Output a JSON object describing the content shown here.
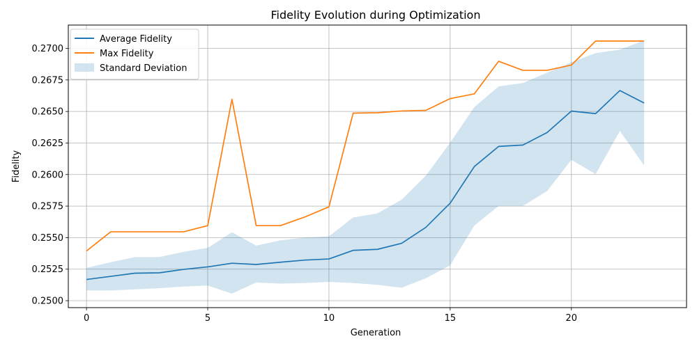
{
  "chart_data": {
    "type": "line",
    "title": "Fidelity Evolution during Optimization",
    "xlabel": "Generation",
    "ylabel": "Fidelity",
    "xlim": [
      -0.75,
      24.75
    ],
    "ylim": [
      0.24945,
      0.27185
    ],
    "grid": true,
    "legend_position": "top-left",
    "x_ticks": [
      0,
      5,
      10,
      15,
      20
    ],
    "x_tick_labels": [
      "0",
      "5",
      "10",
      "15",
      "20"
    ],
    "y_ticks": [
      0.25,
      0.2525,
      0.255,
      0.2575,
      0.26,
      0.2625,
      0.265,
      0.2675,
      0.27
    ],
    "y_tick_labels": [
      "0.2500",
      "0.2525",
      "0.2550",
      "0.2575",
      "0.2600",
      "0.2625",
      "0.2650",
      "0.2675",
      "0.2700"
    ],
    "x": [
      0,
      1,
      2,
      3,
      4,
      5,
      6,
      7,
      8,
      9,
      10,
      11,
      12,
      13,
      14,
      15,
      16,
      17,
      18,
      19,
      20,
      21,
      22,
      23
    ],
    "series": [
      {
        "name": "Average Fidelity",
        "color": "#1f77b4",
        "values": [
          0.25168,
          0.25193,
          0.25218,
          0.25221,
          0.25248,
          0.25268,
          0.25297,
          0.25287,
          0.25305,
          0.25322,
          0.25331,
          0.25399,
          0.25407,
          0.25455,
          0.25582,
          0.25773,
          0.26064,
          0.26223,
          0.26234,
          0.26333,
          0.26503,
          0.26483,
          0.26666,
          0.26567
        ]
      },
      {
        "name": "Max Fidelity",
        "color": "#ff7f0e",
        "values": [
          0.25394,
          0.25546,
          0.25546,
          0.25546,
          0.25546,
          0.25595,
          0.26597,
          0.25595,
          0.25595,
          0.25663,
          0.25744,
          0.26487,
          0.2649,
          0.26504,
          0.26509,
          0.26602,
          0.2664,
          0.26898,
          0.26826,
          0.26826,
          0.26868,
          0.27058,
          0.27058,
          0.27058
        ]
      }
    ],
    "band": {
      "name": "Standard Deviation",
      "color": "#1f77b4",
      "opacity": 0.2,
      "lower": [
        0.25081,
        0.25081,
        0.2509,
        0.25099,
        0.25112,
        0.2512,
        0.25056,
        0.25144,
        0.25135,
        0.2514,
        0.25149,
        0.2514,
        0.25126,
        0.25103,
        0.25178,
        0.2528,
        0.25596,
        0.25751,
        0.25751,
        0.25869,
        0.26117,
        0.26003,
        0.26345,
        0.26072
      ],
      "upper": [
        0.2526,
        0.25305,
        0.25346,
        0.25346,
        0.25387,
        0.25419,
        0.25542,
        0.25437,
        0.25478,
        0.25501,
        0.2551,
        0.2566,
        0.25692,
        0.25801,
        0.25992,
        0.26253,
        0.26535,
        0.26699,
        0.26726,
        0.26808,
        0.2689,
        0.26963,
        0.2699,
        0.27063
      ]
    }
  }
}
